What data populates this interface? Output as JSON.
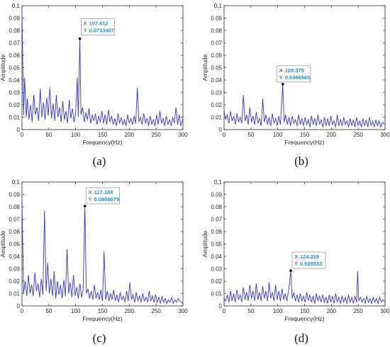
{
  "chart_data": [
    {
      "type": "line",
      "panel": "(a)",
      "xlabel": "Frequency(Hz)",
      "ylabel": "Amplitude",
      "xlim": [
        0,
        300
      ],
      "ylim": [
        0,
        0.1
      ],
      "xticks": [
        0,
        50,
        100,
        150,
        200,
        250,
        300
      ],
      "yticks": [
        0,
        0.01,
        0.02,
        0.03,
        0.04,
        0.05,
        0.06,
        0.07,
        0.08,
        0.09,
        0.1
      ],
      "line_color": "#3333cc",
      "grid": false,
      "series": [
        {
          "x": [
            0,
            3,
            5,
            8,
            10,
            13,
            16,
            19,
            22,
            25,
            28,
            31,
            34,
            37,
            40,
            43,
            46,
            49,
            52,
            55,
            58,
            61,
            64,
            67,
            70,
            73,
            76,
            79,
            82,
            85,
            88,
            91,
            94,
            97,
            100,
            103,
            105,
            107.812,
            110,
            113,
            116,
            119,
            122,
            125,
            128,
            131,
            134,
            137,
            140,
            143,
            146,
            149,
            152,
            155,
            158,
            161,
            164,
            167,
            170,
            173,
            176,
            179,
            182,
            185,
            188,
            191,
            194,
            197,
            200,
            203,
            206,
            209,
            212,
            215,
            218,
            221,
            224,
            227,
            230,
            233,
            236,
            239,
            242,
            245,
            248,
            251,
            254,
            257,
            260,
            263,
            266,
            269,
            272,
            275,
            278,
            281,
            284,
            287,
            290,
            293,
            296,
            300
          ],
          "y": [
            0.095,
            0.012,
            0.042,
            0.01,
            0.025,
            0.008,
            0.02,
            0.006,
            0.028,
            0.012,
            0.018,
            0.007,
            0.033,
            0.01,
            0.022,
            0.008,
            0.026,
            0.011,
            0.034,
            0.009,
            0.021,
            0.007,
            0.028,
            0.01,
            0.018,
            0.006,
            0.023,
            0.008,
            0.015,
            0.005,
            0.024,
            0.009,
            0.017,
            0.006,
            0.013,
            0.042,
            0.01,
            0.0733487,
            0.012,
            0.018,
            0.006,
            0.014,
            0.008,
            0.017,
            0.005,
            0.012,
            0.007,
            0.013,
            0.004,
            0.011,
            0.006,
            0.015,
            0.005,
            0.012,
            0.004,
            0.016,
            0.006,
            0.011,
            0.004,
            0.009,
            0.003,
            0.013,
            0.005,
            0.01,
            0.004,
            0.008,
            0.003,
            0.012,
            0.005,
            0.009,
            0.004,
            0.011,
            0.005,
            0.034,
            0.006,
            0.01,
            0.004,
            0.013,
            0.005,
            0.009,
            0.003,
            0.011,
            0.004,
            0.008,
            0.003,
            0.012,
            0.004,
            0.015,
            0.005,
            0.009,
            0.003,
            0.011,
            0.004,
            0.008,
            0.003,
            0.01,
            0.005,
            0.018,
            0.004,
            0.012,
            0.003,
            0.009
          ]
        }
      ],
      "datatip": {
        "x": 107.812,
        "y": 0.0733487,
        "x_text": "107.812",
        "y_text": "0.0733487"
      }
    },
    {
      "type": "line",
      "panel": "(b)",
      "xlabel": "Frequency(Hz)",
      "ylabel": "Amplitude",
      "xlim": [
        0,
        300
      ],
      "ylim": [
        0,
        0.1
      ],
      "xticks": [
        0,
        50,
        100,
        150,
        200,
        250,
        300
      ],
      "yticks": [
        0,
        0.01,
        0.02,
        0.03,
        0.04,
        0.05,
        0.06,
        0.07,
        0.08,
        0.09,
        0.1
      ],
      "line_color": "#3333cc",
      "grid": false,
      "series": [
        {
          "x": [
            0,
            3,
            6,
            9,
            12,
            15,
            18,
            21,
            24,
            27,
            30,
            33,
            36,
            39,
            42,
            45,
            48,
            51,
            54,
            57,
            60,
            63,
            66,
            69,
            72,
            75,
            78,
            81,
            84,
            87,
            90,
            93,
            96,
            99,
            102,
            105,
            109.375,
            112,
            115,
            118,
            121,
            124,
            127,
            130,
            133,
            136,
            139,
            142,
            145,
            148,
            151,
            154,
            157,
            160,
            163,
            166,
            169,
            172,
            175,
            178,
            181,
            184,
            187,
            190,
            193,
            196,
            199,
            202,
            205,
            208,
            211,
            214,
            217,
            220,
            223,
            226,
            229,
            232,
            235,
            238,
            241,
            244,
            247,
            250,
            253,
            256,
            259,
            262,
            265,
            268,
            271,
            274,
            277,
            280,
            283,
            286,
            289,
            292,
            295,
            300
          ],
          "y": [
            0.015,
            0.008,
            0.012,
            0.005,
            0.015,
            0.007,
            0.011,
            0.004,
            0.013,
            0.006,
            0.01,
            0.005,
            0.028,
            0.007,
            0.012,
            0.004,
            0.018,
            0.006,
            0.011,
            0.004,
            0.014,
            0.005,
            0.009,
            0.003,
            0.025,
            0.006,
            0.012,
            0.004,
            0.01,
            0.003,
            0.013,
            0.005,
            0.009,
            0.003,
            0.011,
            0.004,
            0.0366565,
            0.006,
            0.012,
            0.004,
            0.01,
            0.003,
            0.011,
            0.005,
            0.008,
            0.003,
            0.012,
            0.004,
            0.009,
            0.003,
            0.01,
            0.004,
            0.008,
            0.002,
            0.011,
            0.004,
            0.009,
            0.003,
            0.012,
            0.004,
            0.008,
            0.002,
            0.01,
            0.003,
            0.009,
            0.003,
            0.011,
            0.004,
            0.007,
            0.002,
            0.012,
            0.003,
            0.008,
            0.003,
            0.01,
            0.004,
            0.007,
            0.002,
            0.009,
            0.003,
            0.008,
            0.002,
            0.01,
            0.003,
            0.007,
            0.002,
            0.009,
            0.003,
            0.008,
            0.002,
            0.01,
            0.003,
            0.007,
            0.002,
            0.008,
            0.003,
            0.007,
            0.002,
            0.006,
            0.004
          ]
        }
      ],
      "datatip": {
        "x": 109.375,
        "y": 0.0366565,
        "x_text": "109.375",
        "y_text": "0.0366565"
      }
    },
    {
      "type": "line",
      "panel": "(c)",
      "xlabel": "Frequency(Hz)",
      "ylabel": "Amplitude",
      "xlim": [
        0,
        300
      ],
      "ylim": [
        0,
        0.1
      ],
      "xticks": [
        0,
        50,
        100,
        150,
        200,
        250,
        300
      ],
      "yticks": [
        0,
        0.01,
        0.02,
        0.03,
        0.04,
        0.05,
        0.06,
        0.07,
        0.08,
        0.09,
        0.1
      ],
      "line_color": "#3333cc",
      "grid": false,
      "series": [
        {
          "x": [
            0,
            3,
            6,
            9,
            12,
            15,
            18,
            21,
            24,
            27,
            30,
            33,
            36,
            39,
            42,
            45,
            48,
            51,
            54,
            57,
            60,
            63,
            66,
            69,
            72,
            75,
            78,
            81,
            84,
            87,
            90,
            93,
            96,
            99,
            102,
            105,
            108,
            111,
            114,
            117.188,
            120,
            123,
            126,
            129,
            132,
            135,
            138,
            141,
            144,
            147,
            150,
            153,
            156,
            159,
            162,
            165,
            168,
            171,
            174,
            177,
            180,
            183,
            186,
            189,
            192,
            195,
            198,
            201,
            204,
            207,
            210,
            213,
            216,
            219,
            222,
            225,
            228,
            231,
            234,
            237,
            240,
            243,
            246,
            249,
            252,
            255,
            258,
            261,
            264,
            267,
            270,
            273,
            276,
            279,
            282,
            285,
            288,
            291,
            294,
            300
          ],
          "y": [
            0.085,
            0.01,
            0.02,
            0.008,
            0.025,
            0.01,
            0.017,
            0.008,
            0.027,
            0.012,
            0.018,
            0.007,
            0.022,
            0.009,
            0.077,
            0.012,
            0.035,
            0.01,
            0.022,
            0.008,
            0.028,
            0.006,
            0.02,
            0.009,
            0.017,
            0.006,
            0.021,
            0.008,
            0.046,
            0.01,
            0.019,
            0.007,
            0.025,
            0.008,
            0.015,
            0.006,
            0.018,
            0.007,
            0.013,
            0.0806079,
            0.01,
            0.014,
            0.006,
            0.012,
            0.005,
            0.017,
            0.006,
            0.011,
            0.005,
            0.013,
            0.004,
            0.044,
            0.005,
            0.012,
            0.004,
            0.01,
            0.005,
            0.013,
            0.004,
            0.009,
            0.003,
            0.011,
            0.005,
            0.008,
            0.003,
            0.012,
            0.004,
            0.019,
            0.005,
            0.009,
            0.003,
            0.011,
            0.004,
            0.008,
            0.003,
            0.01,
            0.004,
            0.007,
            0.003,
            0.012,
            0.004,
            0.008,
            0.003,
            0.009,
            0.003,
            0.007,
            0.002,
            0.008,
            0.003,
            0.006,
            0.002,
            0.005,
            0.003,
            0.007,
            0.002,
            0.005,
            0.003,
            0.006,
            0.004,
            0.002
          ]
        }
      ],
      "datatip": {
        "x": 117.188,
        "y": 0.0806079,
        "x_text": "117.188",
        "y_text": "0.0806079"
      }
    },
    {
      "type": "line",
      "panel": "(d)",
      "xlabel": "Frequency(Hz)",
      "ylabel": "Amplitude",
      "xlim": [
        0,
        300
      ],
      "ylim": [
        0,
        0.1
      ],
      "xticks": [
        0,
        50,
        100,
        150,
        200,
        250,
        300
      ],
      "yticks": [
        0,
        0.01,
        0.02,
        0.03,
        0.04,
        0.05,
        0.06,
        0.07,
        0.08,
        0.09,
        0.1
      ],
      "line_color": "#3333cc",
      "grid": false,
      "series": [
        {
          "x": [
            0,
            3,
            6,
            9,
            12,
            15,
            18,
            21,
            24,
            27,
            30,
            33,
            36,
            39,
            42,
            45,
            48,
            51,
            54,
            57,
            60,
            63,
            66,
            69,
            72,
            75,
            78,
            81,
            84,
            87,
            90,
            93,
            96,
            99,
            102,
            105,
            108,
            111,
            114,
            117,
            120,
            122,
            124.219,
            127,
            130,
            133,
            136,
            139,
            142,
            145,
            148,
            151,
            154,
            157,
            160,
            163,
            166,
            169,
            172,
            175,
            178,
            181,
            184,
            187,
            190,
            193,
            196,
            199,
            202,
            205,
            208,
            211,
            214,
            217,
            220,
            223,
            226,
            229,
            232,
            235,
            238,
            241,
            244,
            247,
            249,
            251,
            254,
            257,
            260,
            263,
            266,
            269,
            272,
            275,
            278,
            281,
            284,
            287,
            290,
            293,
            296,
            300
          ],
          "y": [
            0.006,
            0.004,
            0.009,
            0.003,
            0.012,
            0.004,
            0.01,
            0.003,
            0.013,
            0.005,
            0.009,
            0.003,
            0.015,
            0.005,
            0.011,
            0.004,
            0.017,
            0.006,
            0.012,
            0.004,
            0.018,
            0.005,
            0.011,
            0.004,
            0.016,
            0.006,
            0.012,
            0.004,
            0.019,
            0.006,
            0.011,
            0.004,
            0.017,
            0.005,
            0.012,
            0.004,
            0.014,
            0.005,
            0.01,
            0.004,
            0.012,
            0.018,
            0.028533,
            0.006,
            0.011,
            0.004,
            0.009,
            0.003,
            0.01,
            0.004,
            0.008,
            0.003,
            0.011,
            0.004,
            0.009,
            0.003,
            0.008,
            0.002,
            0.01,
            0.004,
            0.008,
            0.003,
            0.009,
            0.003,
            0.007,
            0.002,
            0.009,
            0.003,
            0.008,
            0.002,
            0.01,
            0.003,
            0.007,
            0.002,
            0.008,
            0.003,
            0.007,
            0.002,
            0.009,
            0.003,
            0.007,
            0.002,
            0.008,
            0.003,
            0.028,
            0.004,
            0.007,
            0.003,
            0.006,
            0.002,
            0.008,
            0.003,
            0.006,
            0.002,
            0.007,
            0.003,
            0.006,
            0.002,
            0.007,
            0.003,
            0.005,
            0.003
          ]
        }
      ],
      "datatip": {
        "x": 124.219,
        "y": 0.028533,
        "x_text": "124.219",
        "y_text": "0.028533"
      }
    }
  ],
  "panel_labels": [
    "(a)",
    "(b)",
    "(c)",
    "(d)"
  ],
  "datatip_keys": {
    "x": "X",
    "y": "Y"
  }
}
